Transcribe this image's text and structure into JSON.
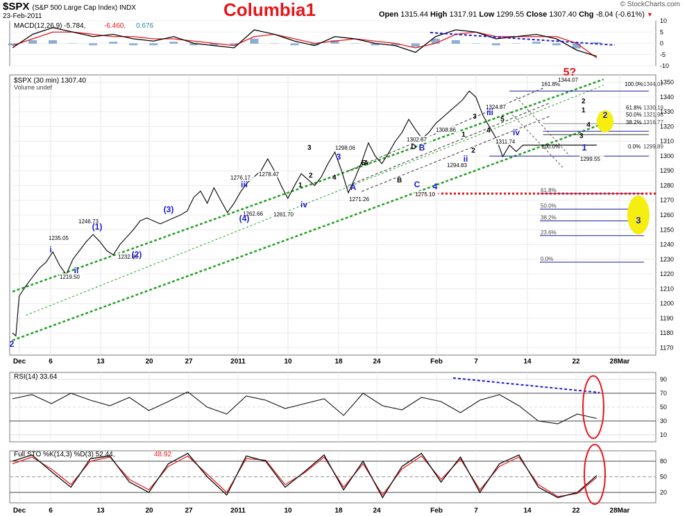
{
  "header": {
    "symbol": "$SPX",
    "description": "(S&P 500 Large Cap Index) INDX",
    "date": "23-Feb-2011",
    "title": "Columbia1",
    "credit": "© StockCharts.com",
    "quote": {
      "open_label": "Open",
      "open": "1315.44",
      "high_label": "High",
      "high": "1317.91",
      "low_label": "Low",
      "low": "1299.55",
      "close_label": "Close",
      "close": "1307.40",
      "chg_label": "Chg",
      "chg": "-8.04 (-0.61%)"
    }
  },
  "colors": {
    "price_line": "#111111",
    "macd_line": "#000000",
    "signal_line": "#e8141b",
    "histogram": "#5a8bbf",
    "channel": "#22a022",
    "fib": "#1a1aa0",
    "wave_blue": "#1a1ad0",
    "support_red": "#e8141b",
    "highlight": "#f5ee10"
  },
  "chart_data": [
    {
      "type": "line",
      "panel": "macd",
      "legend": {
        "name": "MACD(12,26,9)",
        "macd": "-5.784",
        "signal": "-6.460",
        "hist": "0.676"
      },
      "ylim": [
        -10,
        10
      ],
      "yticks": [
        "10",
        "5",
        "0",
        "-5",
        "-10"
      ],
      "x": [
        0,
        3,
        6,
        9,
        12,
        15,
        18,
        21,
        24,
        27,
        30,
        33,
        36,
        39,
        42,
        45,
        48,
        51,
        54,
        57,
        60,
        63,
        66,
        69,
        72,
        75,
        78,
        81,
        84,
        87
      ],
      "series": [
        {
          "name": "MACD",
          "values": [
            -2,
            4,
            7,
            5,
            3,
            4,
            2,
            1,
            3,
            0,
            -1,
            -2,
            6,
            4,
            1,
            -1,
            3,
            2,
            0,
            -1,
            -4,
            3,
            6,
            5,
            2,
            3,
            4,
            2,
            -3,
            -5.784
          ]
        },
        {
          "name": "Signal",
          "values": [
            -1,
            2,
            5,
            5,
            4,
            3,
            3,
            2,
            2,
            1,
            0,
            -1,
            3,
            4,
            2,
            0,
            1,
            2,
            1,
            0,
            -2,
            0,
            4,
            5,
            3,
            3,
            3,
            3,
            0,
            -6.46
          ]
        }
      ]
    },
    {
      "type": "line",
      "panel": "price",
      "legend": {
        "name": "$SPX (30 min)",
        "value": "1307.40",
        "volume": "Volume undef"
      },
      "ylim": [
        1165,
        1355
      ],
      "yticks": [
        1170,
        1180,
        1190,
        1200,
        1210,
        1220,
        1230,
        1240,
        1250,
        1260,
        1270,
        1280,
        1290,
        1300,
        1310,
        1320,
        1330,
        1340,
        1350
      ],
      "xtick_labels": [
        "Dec",
        "6",
        "13",
        "20",
        "27",
        "2011",
        "10",
        "18",
        "24",
        "Feb",
        "7",
        "14",
        "22",
        "28Mar"
      ],
      "x": [
        0,
        0.5,
        1,
        2,
        3,
        4,
        5,
        6,
        7,
        8,
        9,
        10,
        11,
        12,
        13,
        14,
        15,
        16,
        17,
        18,
        19,
        20,
        21,
        22,
        23,
        24,
        25,
        26,
        27,
        28,
        29,
        30,
        31,
        32,
        33,
        34,
        35,
        36,
        37,
        38,
        39,
        40,
        41,
        42,
        43,
        44,
        45,
        46,
        47,
        48,
        49,
        50,
        51,
        52,
        53,
        54,
        55,
        56,
        57,
        58,
        59,
        60,
        61,
        62,
        63,
        64,
        65,
        66,
        67,
        68,
        69,
        70,
        71,
        72,
        73,
        74,
        75,
        76,
        77,
        78,
        79,
        80,
        81,
        82,
        83,
        84,
        85,
        86,
        87
      ],
      "series": [
        {
          "name": "SPX",
          "values": [
            1180,
            1178,
            1205,
            1212,
            1218,
            1224,
            1228,
            1235,
            1226,
            1219.5,
            1230,
            1236,
            1242,
            1246.73,
            1242,
            1236,
            1232.89,
            1240,
            1245,
            1250,
            1256,
            1258,
            1256,
            1254,
            1256,
            1258,
            1260,
            1262.66,
            1272,
            1276.17,
            1268,
            1278.47,
            1270,
            1261.7,
            1268,
            1276,
            1282,
            1286,
            1290,
            1298.06,
            1290,
            1280,
            1271.26,
            1280,
            1288,
            1284,
            1280,
            1286,
            1295,
            1302.67,
            1290,
            1275.1,
            1285,
            1296,
            1308.86,
            1300,
            1294.83,
            1302,
            1310,
            1316,
            1324.87,
            1318,
            1311.74,
            1316,
            1322,
            1326,
            1330,
            1334,
            1338,
            1344.07,
            1340,
            1328,
            1320,
            1312,
            1299.55,
            1307.4,
            1303,
            1307.4,
            1307.4,
            1307.4,
            1307.4,
            1307.4,
            1307.4,
            1307.4,
            1307.4,
            1307.4,
            1307.4,
            1307.4,
            1307.4
          ]
        }
      ],
      "labels": {
        "price": [
          "1235.05",
          "1219.50",
          "1246.73",
          "1232.89",
          "1276.17",
          "1278.47",
          "1262.66",
          "1261.70",
          "1298.06",
          "1271.26",
          "1302.67",
          "1275.10",
          "1308.86",
          "1294.83",
          "1324.87",
          "1311.74",
          "1344.07",
          "1299.55"
        ],
        "waves": [
          "2",
          "i",
          "ii",
          "(1)",
          "(2)",
          "(3)",
          "(4)",
          "iii",
          "iv",
          "3",
          "4",
          "A",
          "B",
          "C",
          "1",
          "2",
          "3",
          "4",
          "5",
          "iii",
          "iv",
          "ii",
          "5?",
          "1",
          "2",
          "3",
          "4",
          "D",
          "E"
        ],
        "fib_upper": [
          "161.8%",
          "100.0%",
          "61.8%",
          "50.0%",
          "38.2%",
          "0.0%",
          "100.0%"
        ],
        "fib_upper_vals": [
          "1344.07",
          "1330.19",
          "1321.98",
          "1316.77",
          "1299.89"
        ],
        "fib_lower": [
          "61.8%",
          "50.0%",
          "38.2%",
          "23.6%",
          "0.0%"
        ]
      }
    },
    {
      "type": "line",
      "panel": "rsi",
      "legend": {
        "name": "RSI(14)",
        "value": "33.64"
      },
      "ylim": [
        0,
        100
      ],
      "yticks": [
        "90",
        "70",
        "50",
        "30",
        "10"
      ],
      "series": [
        {
          "name": "RSI",
          "values": [
            62,
            68,
            55,
            70,
            60,
            52,
            64,
            45,
            58,
            72,
            50,
            40,
            66,
            60,
            48,
            55,
            62,
            38,
            70,
            52,
            46,
            64,
            58,
            42,
            60,
            68,
            52,
            30,
            26,
            40,
            33.64
          ]
        }
      ]
    },
    {
      "type": "line",
      "panel": "sto",
      "legend": {
        "name": "Full STO %K(14,3) %D(3)",
        "k": "52.44",
        "d": "48.92"
      },
      "ylim": [
        0,
        100
      ],
      "yticks": [
        "80",
        "50",
        "20"
      ],
      "series": [
        {
          "name": "%K",
          "values": [
            80,
            92,
            60,
            30,
            85,
            90,
            40,
            20,
            75,
            95,
            50,
            15,
            90,
            80,
            30,
            60,
            92,
            25,
            80,
            10,
            70,
            95,
            40,
            88,
            20,
            75,
            92,
            30,
            10,
            20,
            52.44
          ]
        },
        {
          "name": "%D",
          "values": [
            75,
            88,
            65,
            35,
            80,
            88,
            45,
            25,
            70,
            90,
            55,
            20,
            85,
            82,
            35,
            58,
            88,
            30,
            75,
            15,
            65,
            90,
            45,
            84,
            25,
            70,
            88,
            35,
            12,
            18,
            48.92
          ]
        }
      ]
    }
  ]
}
